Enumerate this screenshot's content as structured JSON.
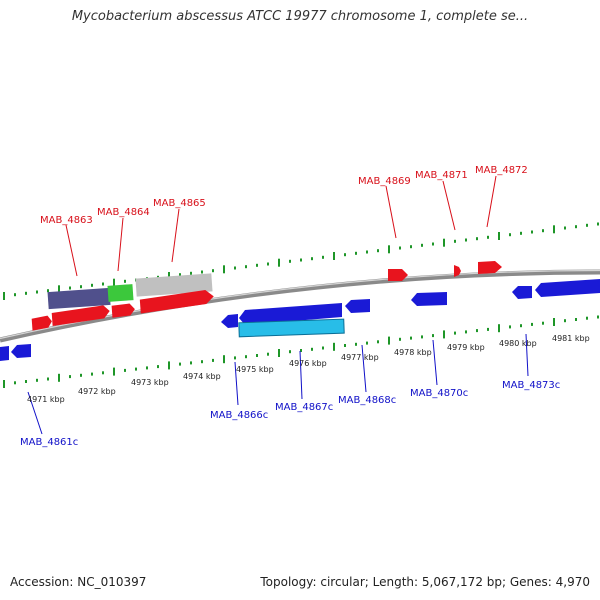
{
  "title": "Mycobacterium abscessus ATCC 19977 chromosome 1, complete se...",
  "footer": {
    "accession": "Accession: NC_010397",
    "topology": "Topology: circular; Length: 5,067,172 bp; Genes: 4,970"
  },
  "colors": {
    "forward_gene": "#e8141e",
    "reverse_gene": "#1a1ad6",
    "cds_highlight": "#28bde8",
    "domain_purple": "#50508c",
    "domain_green": "#3cc83c",
    "domain_gray": "#c0c0c0",
    "backbone": "#8a8a8a",
    "ticks": "#1e9628",
    "forward_label": "#d8101a",
    "reverse_label": "#1010c8"
  },
  "scale_ticks": [
    "4971 kbp",
    "4972 kbp",
    "4973 kbp",
    "4974 kbp",
    "4975 kbp",
    "4976 kbp",
    "4977 kbp",
    "4978 kbp",
    "4979 kbp",
    "4980 kbp",
    "4981 kbp"
  ],
  "forward_labels": [
    "MAB_4863",
    "MAB_4864",
    "MAB_4865",
    "MAB_4869",
    "MAB_4871",
    "MAB_4872"
  ],
  "reverse_labels": [
    "MAB_4861c",
    "MAB_4866c",
    "MAB_4867c",
    "MAB_4868c",
    "MAB_4870c",
    "MAB_4873c"
  ]
}
